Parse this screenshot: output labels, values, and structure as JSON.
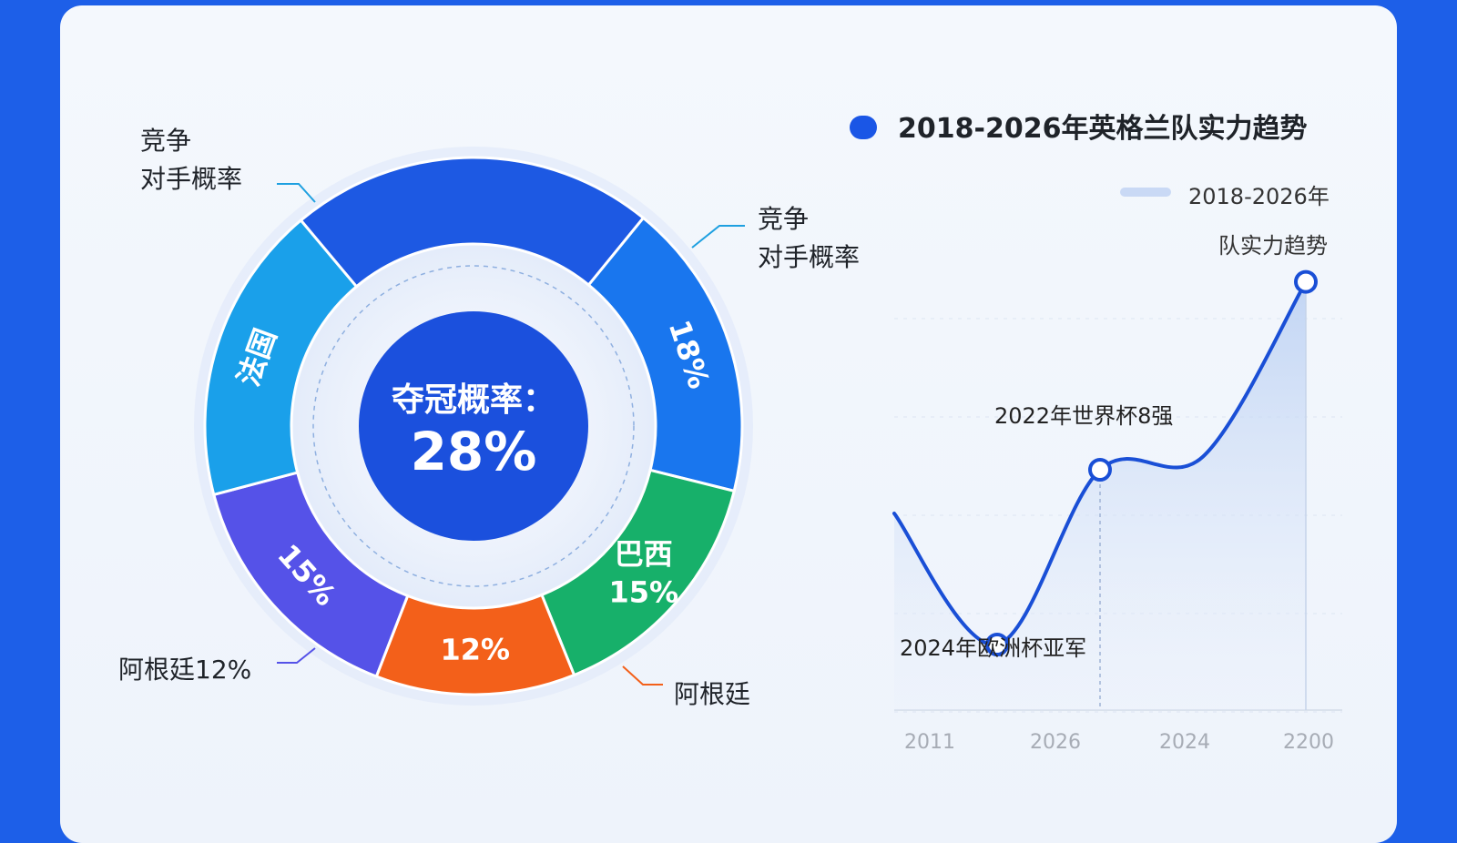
{
  "chart_data": [
    {
      "type": "pie",
      "center": {
        "label": "夺冠概率：",
        "value": "28%"
      },
      "segments": [
        {
          "name": "竞争对手概率",
          "value": 22,
          "label": "",
          "color": "#1d59e3"
        },
        {
          "name": "竞争对手概率",
          "value": 18,
          "label": "18%",
          "color": "#1976ee"
        },
        {
          "name": "巴西",
          "value": 15,
          "label": "15%",
          "color": "#17b06a"
        },
        {
          "name": "阿根廷",
          "value": 12,
          "label": "12%",
          "color": "#f3601a"
        },
        {
          "name": "阿根廷",
          "value": 15,
          "label": "15%",
          "color": "#5552e8"
        },
        {
          "name": "法国",
          "value": 18,
          "label": "",
          "color": "#1aa0ea"
        }
      ],
      "outer_labels": [
        {
          "lines": [
            "竞争",
            "对手概率"
          ]
        },
        {
          "lines": [
            "竞争",
            "对手概率"
          ]
        },
        {
          "lines": [
            "阿根廷12%"
          ]
        },
        {
          "lines": [
            "阿根廷"
          ]
        }
      ],
      "inner_labels": [
        {
          "lines": [
            "法国"
          ]
        },
        {
          "lines": [
            "巴西",
            "15%"
          ]
        }
      ]
    },
    {
      "type": "line",
      "title": "2018-2026年英格兰队实力趋势",
      "legend": [
        "2018-2026年",
        "队实力趋势"
      ],
      "x_ticks": [
        "2011",
        "2026",
        "2024",
        "2200"
      ],
      "series": [
        {
          "points": [
            [
              0,
              45
            ],
            [
              1,
              15
            ],
            [
              2,
              55
            ],
            [
              3,
              58
            ],
            [
              4,
              98
            ]
          ]
        }
      ],
      "y_range": [
        0,
        100
      ],
      "annotations": [
        {
          "text": "2024年欧洲杯亚军",
          "point": 1
        },
        {
          "text": "2022年世界杯8强",
          "point": 2
        }
      ],
      "colors": {
        "line": "#1a4fd6",
        "area": "#d4e2f8"
      }
    }
  ]
}
